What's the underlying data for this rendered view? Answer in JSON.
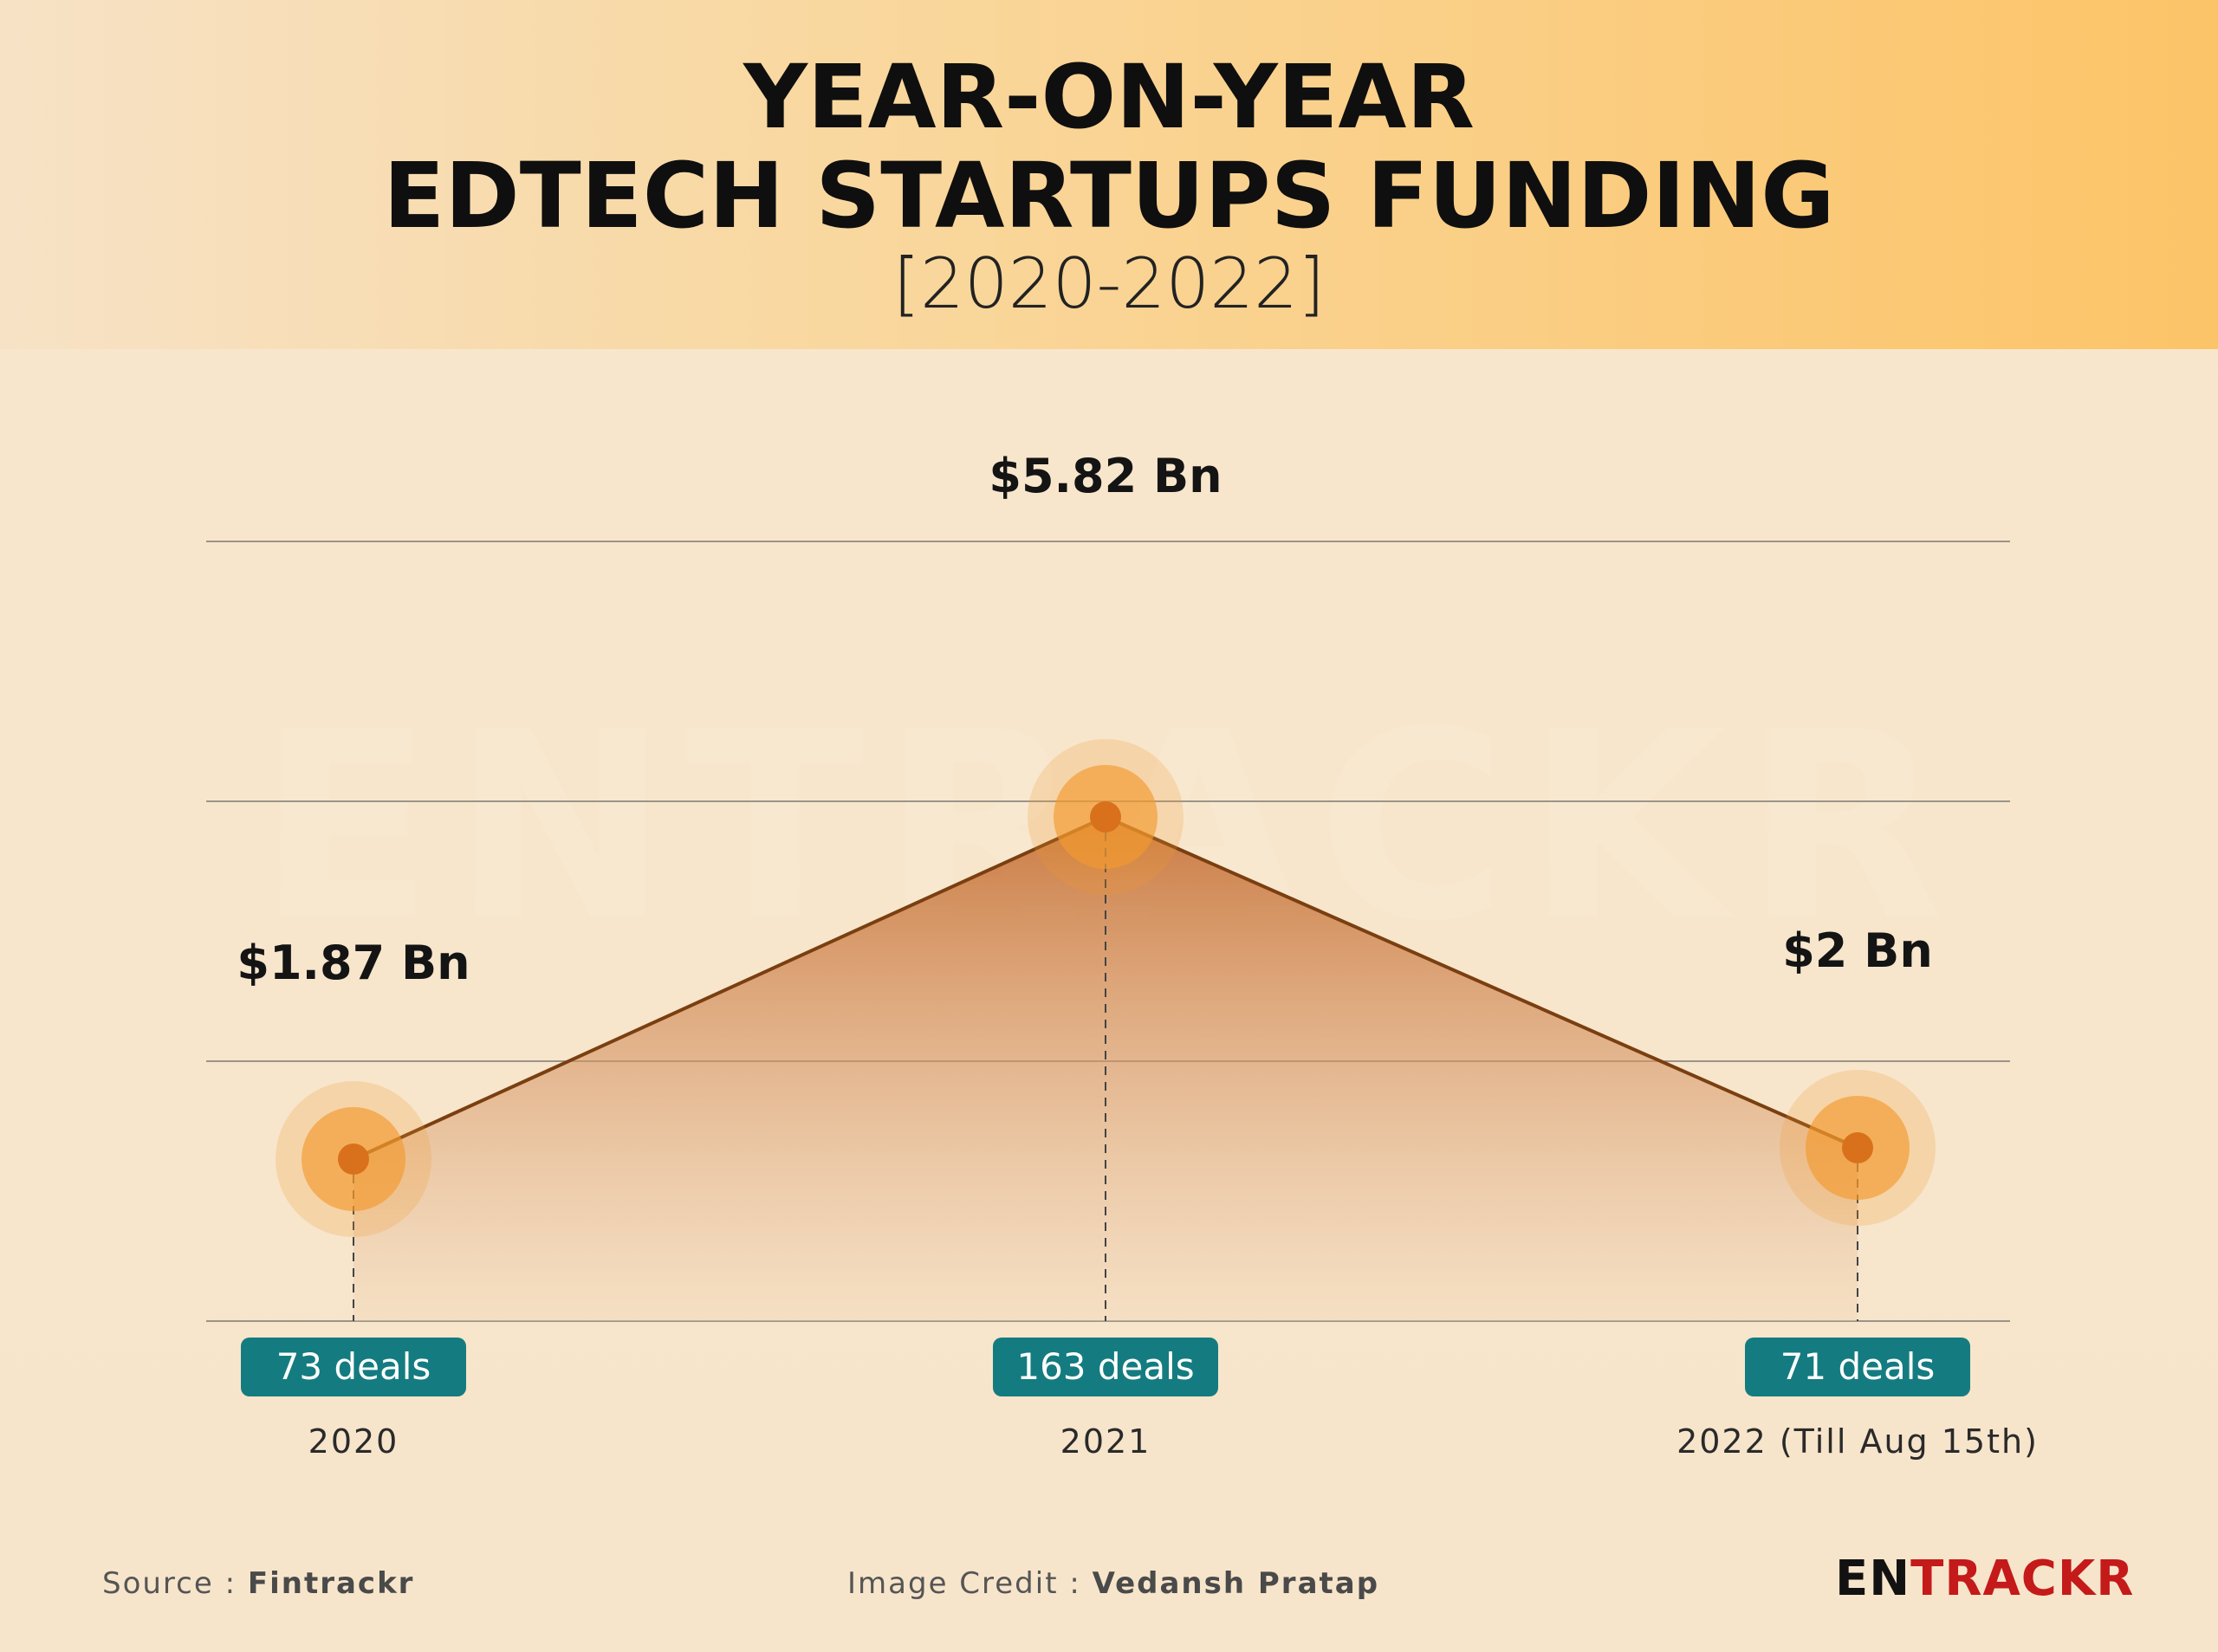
{
  "header": {
    "title_line1": "YEAR-ON-YEAR",
    "title_line2": "EDTECH STARTUPS FUNDING",
    "subtitle": "[2020-2022]"
  },
  "chart_data": {
    "type": "area",
    "categories": [
      "2020",
      "2021",
      "2022 (Till Aug 15th)"
    ],
    "series": [
      {
        "values": [
          1.87,
          5.82,
          2.0
        ]
      }
    ],
    "value_labels": [
      "$1.87 Bn",
      "$5.82 Bn",
      "$2 Bn"
    ],
    "deals": [
      "73 deals",
      "163 deals",
      "71 deals"
    ],
    "deal_counts": [
      73,
      163,
      71
    ],
    "ylim": [
      0,
      6
    ],
    "grid": true,
    "colors": {
      "line": "#7a3f10",
      "fill": "#c97a3e",
      "marker": "#f29a2e",
      "pill": "#147c80"
    }
  },
  "watermark": "ENTRACKR",
  "footer": {
    "source_prefix": "Source : ",
    "source_name": "Fintrackr",
    "credit_prefix": "Image Credit : ",
    "credit_name": "Vedansh Pratap",
    "brand_part1": "EN",
    "brand_part2": "TRACKR"
  }
}
